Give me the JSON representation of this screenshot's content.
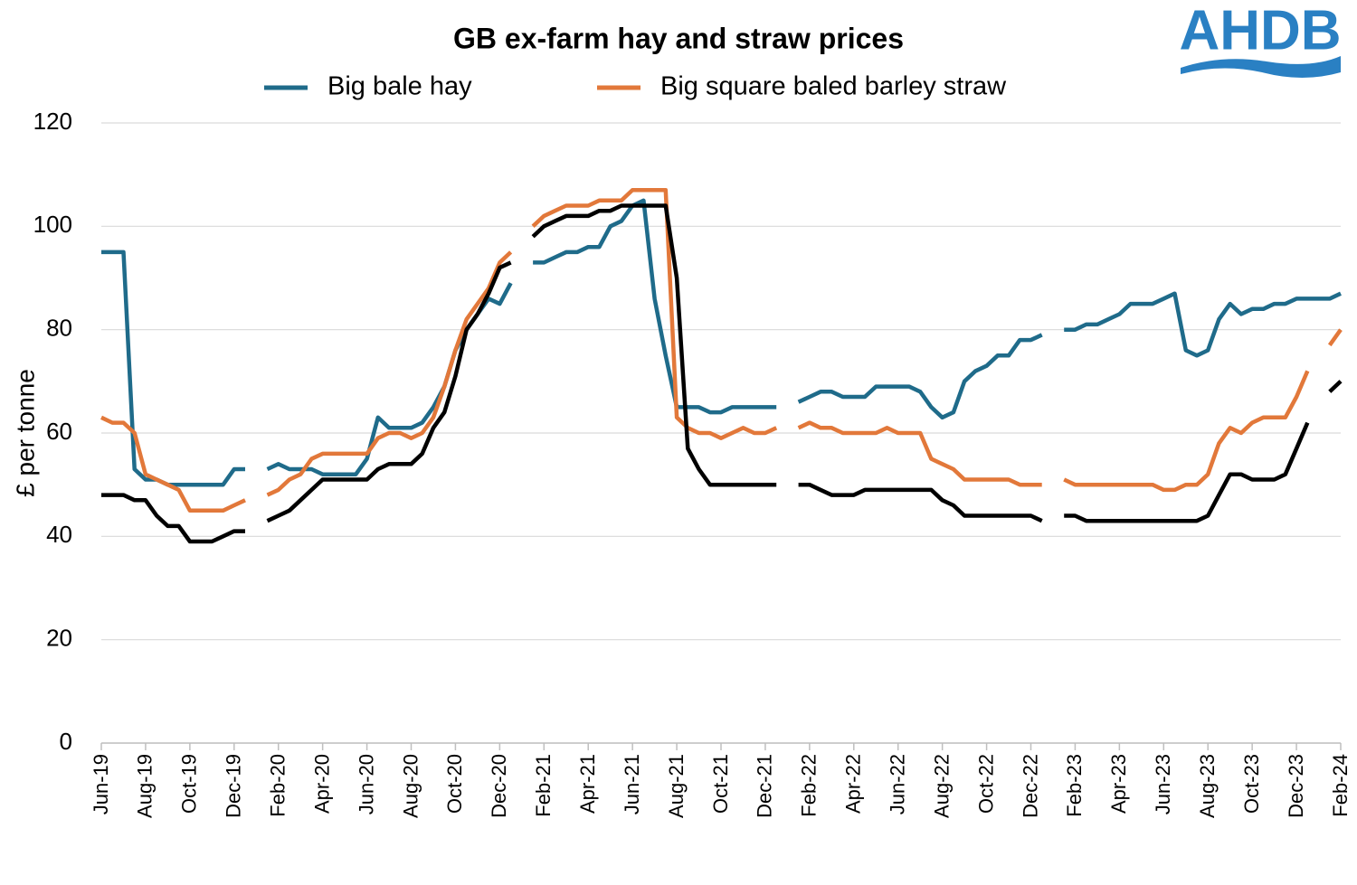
{
  "chart_data": {
    "type": "line",
    "title": "GB ex-farm hay and straw prices",
    "y_label": "£ per tonne",
    "logo": "AHDB",
    "categories": [
      "Jun-19",
      null,
      null,
      null,
      "Aug-19",
      null,
      null,
      null,
      "Oct-19",
      null,
      null,
      null,
      "Dec-19",
      null,
      null,
      null,
      "Feb-20",
      null,
      null,
      null,
      "Apr-20",
      null,
      null,
      null,
      "Jun-20",
      null,
      null,
      null,
      "Aug-20",
      null,
      null,
      null,
      "Oct-20",
      null,
      null,
      null,
      "Dec-20",
      null,
      null,
      null,
      "Feb-21",
      null,
      null,
      null,
      "Apr-21",
      null,
      null,
      null,
      "Jun-21",
      null,
      null,
      null,
      "Aug-21",
      null,
      null,
      null,
      "Oct-21",
      null,
      null,
      null,
      "Dec-21",
      null,
      null,
      null,
      "Feb-22",
      null,
      null,
      null,
      "Apr-22",
      null,
      null,
      null,
      "Jun-22",
      null,
      null,
      null,
      "Aug-22",
      null,
      null,
      null,
      "Oct-22",
      null,
      null,
      null,
      "Dec-22",
      null,
      null,
      null,
      "Feb-23",
      null,
      null,
      null,
      "Apr-23",
      null,
      null,
      null,
      "Jun-23",
      null,
      null,
      null,
      "Aug-23",
      null,
      null,
      null,
      "Oct-23",
      null,
      null,
      null,
      "Dec-23",
      null,
      null,
      null,
      "Feb-24"
    ],
    "series": [
      {
        "name": "Big bale hay",
        "color": "#1f6b8a",
        "values": [
          95,
          95,
          95,
          53,
          51,
          51,
          50,
          50,
          50,
          50,
          50,
          50,
          53,
          53,
          null,
          53,
          54,
          53,
          53,
          53,
          52,
          52,
          52,
          52,
          55,
          63,
          61,
          61,
          61,
          62,
          65,
          69,
          76,
          80,
          83,
          86,
          85,
          89,
          null,
          93,
          93,
          94,
          95,
          95,
          96,
          96,
          100,
          101,
          104,
          105,
          86,
          75,
          65,
          65,
          65,
          64,
          64,
          65,
          65,
          65,
          65,
          65,
          null,
          66,
          67,
          68,
          68,
          67,
          67,
          67,
          69,
          69,
          69,
          69,
          68,
          65,
          63,
          64,
          70,
          72,
          73,
          75,
          75,
          78,
          78,
          79,
          null,
          80,
          80,
          81,
          81,
          82,
          83,
          85,
          85,
          85,
          86,
          87,
          76,
          75,
          76,
          82,
          85,
          83,
          84,
          84,
          85,
          85,
          86,
          86,
          86,
          86,
          87
        ]
      },
      {
        "name": "Big square baled barley straw",
        "color": "#e2783a",
        "values": [
          63,
          62,
          62,
          60,
          52,
          51,
          50,
          49,
          45,
          45,
          45,
          45,
          46,
          47,
          null,
          48,
          49,
          51,
          52,
          55,
          56,
          56,
          56,
          56,
          56,
          59,
          60,
          60,
          59,
          60,
          63,
          69,
          76,
          82,
          85,
          88,
          93,
          95,
          null,
          100,
          102,
          103,
          104,
          104,
          104,
          105,
          105,
          105,
          107,
          107,
          107,
          107,
          63,
          61,
          60,
          60,
          59,
          60,
          61,
          60,
          60,
          61,
          null,
          61,
          62,
          61,
          61,
          60,
          60,
          60,
          60,
          61,
          60,
          60,
          60,
          55,
          54,
          53,
          51,
          51,
          51,
          51,
          51,
          50,
          50,
          50,
          null,
          51,
          50,
          50,
          50,
          50,
          50,
          50,
          50,
          50,
          49,
          49,
          50,
          50,
          52,
          58,
          61,
          60,
          62,
          63,
          63,
          63,
          67,
          72,
          null,
          77,
          80
        ]
      },
      {
        "color": "#000000",
        "values": [
          48,
          48,
          48,
          47,
          47,
          44,
          42,
          42,
          39,
          39,
          39,
          40,
          41,
          41,
          null,
          43,
          44,
          45,
          47,
          49,
          51,
          51,
          51,
          51,
          51,
          53,
          54,
          54,
          54,
          56,
          61,
          64,
          71,
          80,
          83,
          87,
          92,
          93,
          null,
          98,
          100,
          101,
          102,
          102,
          102,
          103,
          103,
          104,
          104,
          104,
          104,
          104,
          90,
          57,
          53,
          50,
          50,
          50,
          50,
          50,
          50,
          50,
          null,
          50,
          50,
          49,
          48,
          48,
          48,
          49,
          49,
          49,
          49,
          49,
          49,
          49,
          47,
          46,
          44,
          44,
          44,
          44,
          44,
          44,
          44,
          43,
          null,
          44,
          44,
          43,
          43,
          43,
          43,
          43,
          43,
          43,
          43,
          43,
          43,
          43,
          44,
          48,
          52,
          52,
          51,
          51,
          51,
          52,
          57,
          62,
          null,
          68,
          70
        ]
      }
    ],
    "ylim": [
      0,
      120
    ],
    "yticks": [
      0,
      20,
      40,
      60,
      80,
      100,
      120
    ],
    "grid": true
  }
}
